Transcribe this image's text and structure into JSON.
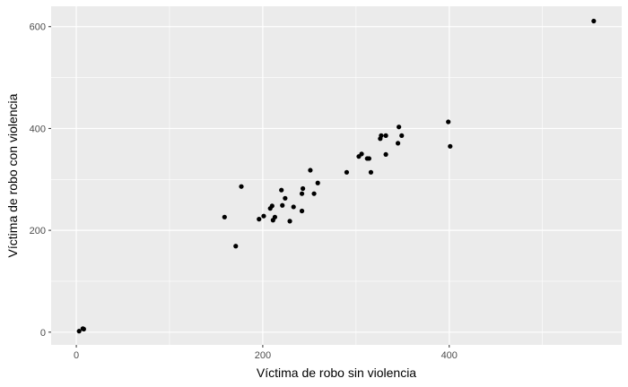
{
  "chart_data": {
    "type": "scatter",
    "title": "",
    "xlabel": "Víctima de robo sin violencia",
    "ylabel": "Víctima de robo con violencia",
    "xlim": [
      -27,
      585
    ],
    "ylim": [
      -25,
      640
    ],
    "x_ticks": [
      0,
      200,
      400
    ],
    "x_tick_labels": [
      "0",
      "200",
      "400"
    ],
    "y_ticks": [
      0,
      200,
      400,
      600
    ],
    "y_tick_labels": [
      "0",
      "200",
      "400",
      "600"
    ],
    "grid": true,
    "background": "#EBEBEB",
    "grid_color": "#FFFFFF",
    "point_color": "#000000",
    "points": [
      {
        "x": 3,
        "y": 2
      },
      {
        "x": 7,
        "y": 7
      },
      {
        "x": 8,
        "y": 6
      },
      {
        "x": 159,
        "y": 226
      },
      {
        "x": 171,
        "y": 169
      },
      {
        "x": 177,
        "y": 286
      },
      {
        "x": 196,
        "y": 222
      },
      {
        "x": 201,
        "y": 228
      },
      {
        "x": 208,
        "y": 243
      },
      {
        "x": 210,
        "y": 248
      },
      {
        "x": 211,
        "y": 220
      },
      {
        "x": 213,
        "y": 226
      },
      {
        "x": 220,
        "y": 279
      },
      {
        "x": 221,
        "y": 249
      },
      {
        "x": 224,
        "y": 263
      },
      {
        "x": 229,
        "y": 218
      },
      {
        "x": 233,
        "y": 246
      },
      {
        "x": 242,
        "y": 238
      },
      {
        "x": 242,
        "y": 272
      },
      {
        "x": 243,
        "y": 282
      },
      {
        "x": 251,
        "y": 318
      },
      {
        "x": 255,
        "y": 272
      },
      {
        "x": 259,
        "y": 293
      },
      {
        "x": 290,
        "y": 314
      },
      {
        "x": 303,
        "y": 345
      },
      {
        "x": 306,
        "y": 350
      },
      {
        "x": 312,
        "y": 341
      },
      {
        "x": 314,
        "y": 341
      },
      {
        "x": 316,
        "y": 314
      },
      {
        "x": 326,
        "y": 380
      },
      {
        "x": 327,
        "y": 386
      },
      {
        "x": 332,
        "y": 349
      },
      {
        "x": 332,
        "y": 386
      },
      {
        "x": 345,
        "y": 371
      },
      {
        "x": 346,
        "y": 403
      },
      {
        "x": 349,
        "y": 386
      },
      {
        "x": 399,
        "y": 413
      },
      {
        "x": 401,
        "y": 365
      },
      {
        "x": 555,
        "y": 611
      }
    ]
  }
}
